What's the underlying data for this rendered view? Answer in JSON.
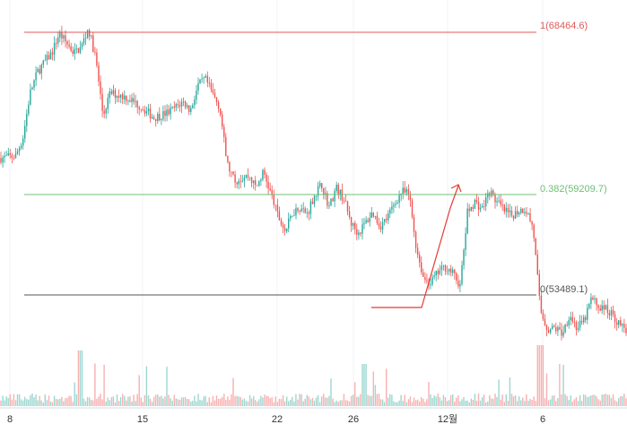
{
  "colors": {
    "up": "#26a69a",
    "down": "#ef5350",
    "fib_1": "#e05a5a",
    "fib_0382": "#6fbf73",
    "fib_0": "#555555",
    "annotation": "#e53935",
    "grid": "#f0f3fa",
    "axis_line": "#d6dce6"
  },
  "chart_data": {
    "type": "candlestick",
    "title": "",
    "xlabel": "",
    "ylabel": "",
    "ylim": [
      50500,
      69300
    ],
    "x_ticks": [
      "8",
      "15",
      "22",
      "26",
      "12월",
      "6"
    ],
    "grid": true,
    "fib_levels": [
      {
        "label": "1(68464.6)",
        "ratio": 1,
        "price": 68464.6,
        "color": "#e05a5a"
      },
      {
        "label": "0.382(59209.7)",
        "ratio": 0.382,
        "price": 59209.7,
        "color": "#6fbf73"
      },
      {
        "label": "0(53489.1)",
        "ratio": 0,
        "price": 53489.1,
        "color": "#555555"
      }
    ],
    "price_path": [
      [
        0,
        61300
      ],
      [
        2,
        61400
      ],
      [
        3,
        62400
      ],
      [
        4,
        65000
      ],
      [
        5,
        66200
      ],
      [
        7,
        67300
      ],
      [
        8,
        68400
      ],
      [
        10,
        67300
      ],
      [
        11,
        67600
      ],
      [
        12,
        68700
      ],
      [
        13,
        67000
      ],
      [
        14,
        63700
      ],
      [
        15,
        65000
      ],
      [
        17,
        64800
      ],
      [
        19,
        64300
      ],
      [
        21,
        63600
      ],
      [
        23,
        63900
      ],
      [
        25,
        64500
      ],
      [
        26,
        64000
      ],
      [
        27,
        65400
      ],
      [
        28,
        65800
      ],
      [
        30,
        64200
      ],
      [
        31,
        61000
      ],
      [
        32,
        60000
      ],
      [
        34,
        60300
      ],
      [
        35,
        59600
      ],
      [
        36,
        60500
      ],
      [
        37,
        59300
      ],
      [
        38,
        58000
      ],
      [
        39,
        57100
      ],
      [
        40,
        58200
      ],
      [
        41,
        58500
      ],
      [
        42,
        58100
      ],
      [
        43,
        59200
      ],
      [
        44,
        59800
      ],
      [
        45,
        58500
      ],
      [
        46,
        59600
      ],
      [
        47,
        59000
      ],
      [
        48,
        57600
      ],
      [
        49,
        57000
      ],
      [
        50,
        57600
      ],
      [
        51,
        58200
      ],
      [
        52,
        57400
      ],
      [
        53,
        57900
      ],
      [
        54,
        58700
      ],
      [
        55,
        59400
      ],
      [
        56,
        59200
      ],
      [
        57,
        56100
      ],
      [
        58,
        54400
      ],
      [
        59,
        54200
      ],
      [
        60,
        54800
      ],
      [
        61,
        55100
      ],
      [
        62,
        54700
      ],
      [
        63,
        54000
      ],
      [
        64,
        58200
      ],
      [
        65,
        58800
      ],
      [
        66,
        58400
      ],
      [
        67,
        59400
      ],
      [
        68,
        58800
      ],
      [
        69,
        58300
      ],
      [
        70,
        58000
      ],
      [
        71,
        58300
      ],
      [
        72,
        58400
      ],
      [
        73,
        57300
      ],
      [
        74,
        52600
      ],
      [
        75,
        51500
      ],
      [
        76,
        51600
      ],
      [
        77,
        51300
      ],
      [
        78,
        52400
      ],
      [
        79,
        51600
      ],
      [
        80,
        52000
      ],
      [
        81,
        53300
      ],
      [
        82,
        52800
      ],
      [
        83,
        52700
      ],
      [
        84,
        52300
      ],
      [
        85,
        51700
      ],
      [
        86,
        51500
      ]
    ]
  }
}
